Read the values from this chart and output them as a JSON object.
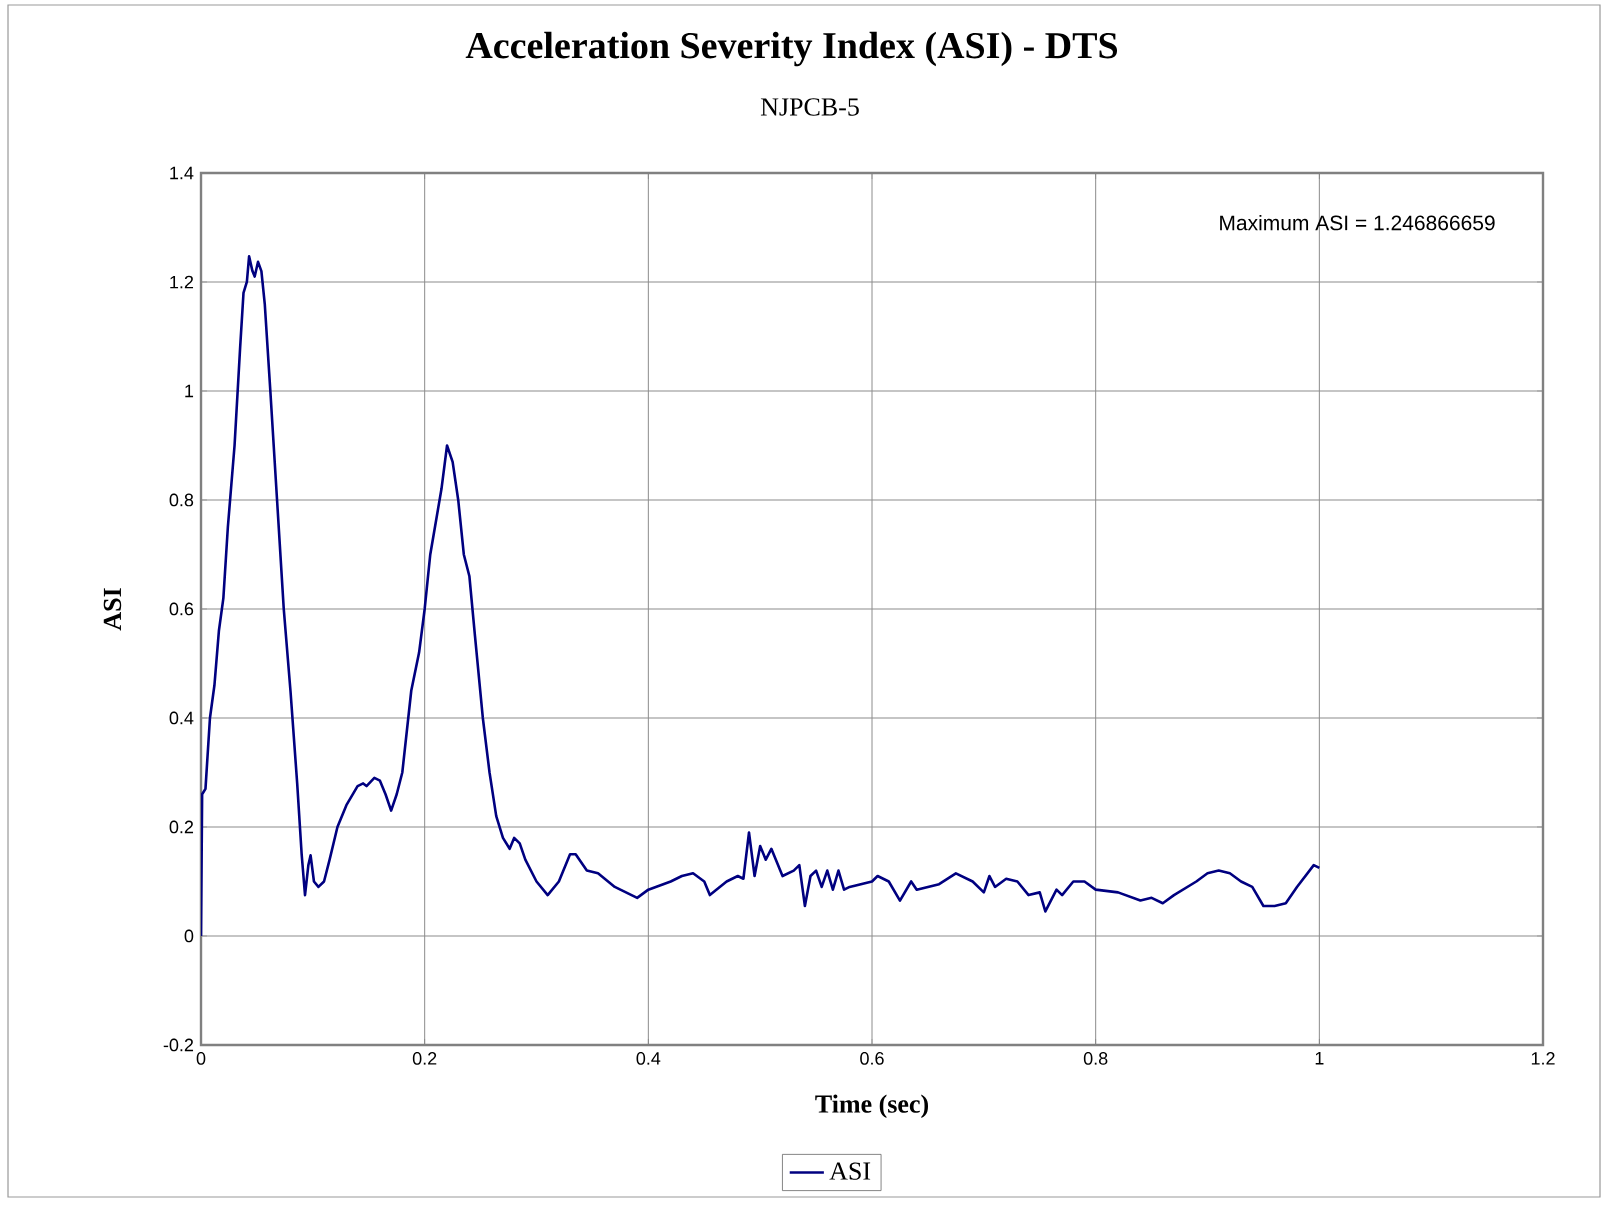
{
  "chart_data": {
    "type": "line",
    "title": "Acceleration Severity Index (ASI) - DTS",
    "subtitle": "NJPCB-5",
    "xlabel": "Time (sec)",
    "ylabel": "ASI",
    "annotations": [
      "Maximum ASI =   1.246866659"
    ],
    "xlim": [
      0,
      1.2
    ],
    "xticks": [
      0,
      0.2,
      0.4,
      0.6,
      0.8,
      1,
      1.2
    ],
    "ylim": [
      -0.2,
      1.4
    ],
    "yticks": [
      -0.2,
      0,
      0.2,
      0.4,
      0.6,
      0.8,
      1,
      1.2,
      1.4
    ],
    "grid": true,
    "legend": "bottom",
    "marker": "none",
    "line_style": "solid",
    "series": [
      {
        "name": "ASI",
        "color": "#000080",
        "x": [
          0,
          0.001,
          0.004,
          0.008,
          0.012,
          0.016,
          0.02,
          0.024,
          0.03,
          0.035,
          0.038,
          0.041,
          0.043,
          0.046,
          0.048,
          0.051,
          0.054,
          0.057,
          0.062,
          0.068,
          0.074,
          0.08,
          0.086,
          0.09,
          0.093,
          0.096,
          0.098,
          0.101,
          0.105,
          0.11,
          0.115,
          0.122,
          0.13,
          0.14,
          0.145,
          0.148,
          0.155,
          0.16,
          0.165,
          0.17,
          0.175,
          0.18,
          0.188,
          0.195,
          0.2,
          0.205,
          0.21,
          0.215,
          0.22,
          0.225,
          0.23,
          0.235,
          0.24,
          0.245,
          0.252,
          0.258,
          0.264,
          0.27,
          0.276,
          0.28,
          0.285,
          0.29,
          0.3,
          0.31,
          0.32,
          0.33,
          0.335,
          0.345,
          0.355,
          0.37,
          0.39,
          0.4,
          0.42,
          0.43,
          0.44,
          0.45,
          0.455,
          0.47,
          0.48,
          0.485,
          0.49,
          0.495,
          0.5,
          0.505,
          0.51,
          0.52,
          0.53,
          0.535,
          0.54,
          0.545,
          0.55,
          0.555,
          0.56,
          0.565,
          0.57,
          0.575,
          0.58,
          0.6,
          0.605,
          0.615,
          0.625,
          0.635,
          0.64,
          0.66,
          0.675,
          0.69,
          0.7,
          0.705,
          0.71,
          0.72,
          0.73,
          0.74,
          0.75,
          0.755,
          0.765,
          0.77,
          0.78,
          0.79,
          0.8,
          0.82,
          0.84,
          0.85,
          0.86,
          0.87,
          0.89,
          0.9,
          0.91,
          0.92,
          0.93,
          0.94,
          0.95,
          0.96,
          0.97,
          0.98,
          0.995,
          1.0
        ],
        "values": [
          0,
          0.26,
          0.27,
          0.4,
          0.46,
          0.56,
          0.62,
          0.75,
          0.9,
          1.08,
          1.18,
          1.2,
          1.247,
          1.22,
          1.21,
          1.237,
          1.22,
          1.16,
          1.0,
          0.8,
          0.6,
          0.45,
          0.28,
          0.15,
          0.075,
          0.13,
          0.148,
          0.1,
          0.09,
          0.1,
          0.14,
          0.2,
          0.24,
          0.275,
          0.28,
          0.275,
          0.29,
          0.285,
          0.26,
          0.23,
          0.26,
          0.3,
          0.45,
          0.52,
          0.6,
          0.7,
          0.76,
          0.82,
          0.9,
          0.87,
          0.8,
          0.7,
          0.66,
          0.55,
          0.4,
          0.3,
          0.22,
          0.18,
          0.16,
          0.18,
          0.17,
          0.14,
          0.1,
          0.075,
          0.1,
          0.15,
          0.15,
          0.12,
          0.115,
          0.09,
          0.07,
          0.085,
          0.1,
          0.11,
          0.115,
          0.1,
          0.075,
          0.1,
          0.11,
          0.105,
          0.19,
          0.11,
          0.165,
          0.14,
          0.16,
          0.11,
          0.12,
          0.13,
          0.055,
          0.11,
          0.12,
          0.09,
          0.12,
          0.085,
          0.12,
          0.085,
          0.09,
          0.1,
          0.11,
          0.1,
          0.065,
          0.1,
          0.085,
          0.095,
          0.115,
          0.1,
          0.08,
          0.11,
          0.09,
          0.105,
          0.1,
          0.075,
          0.08,
          0.045,
          0.085,
          0.075,
          0.1,
          0.1,
          0.085,
          0.08,
          0.065,
          0.07,
          0.06,
          0.075,
          0.1,
          0.115,
          0.12,
          0.115,
          0.1,
          0.09,
          0.055,
          0.055,
          0.06,
          0.09,
          0.13,
          0.125
        ]
      }
    ]
  }
}
